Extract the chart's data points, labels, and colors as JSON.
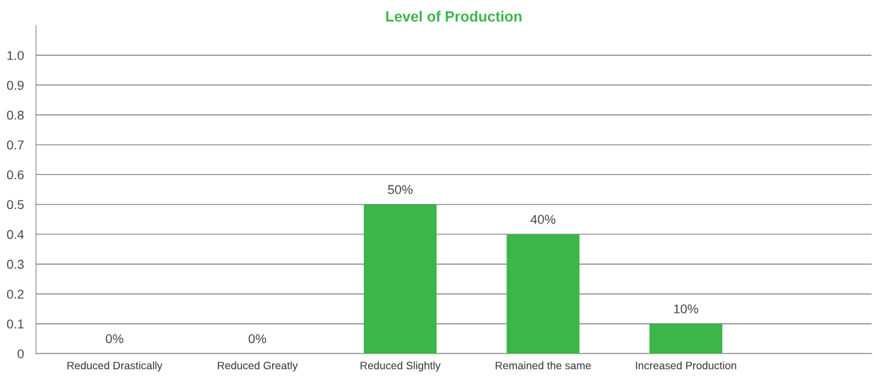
{
  "chart_data": {
    "type": "bar",
    "title": "Level of Production",
    "categories": [
      "Reduced Drastically",
      "Reduced Greatly",
      "Reduced Slightly",
      "Remained the same",
      "Increased Production"
    ],
    "values": [
      0,
      0,
      0.5,
      0.4,
      0.1
    ],
    "value_labels": [
      "0%",
      "0%",
      "50%",
      "40%",
      "10%"
    ],
    "color": "#3cb54a",
    "ylim": [
      0,
      1.1
    ],
    "yticks": [
      0,
      0.1,
      0.2,
      0.3,
      0.4,
      0.5,
      0.6,
      0.7,
      0.8,
      0.9,
      {
        "value": 1,
        "label": "1.0"
      }
    ],
    "grid": "y",
    "legend": false
  }
}
